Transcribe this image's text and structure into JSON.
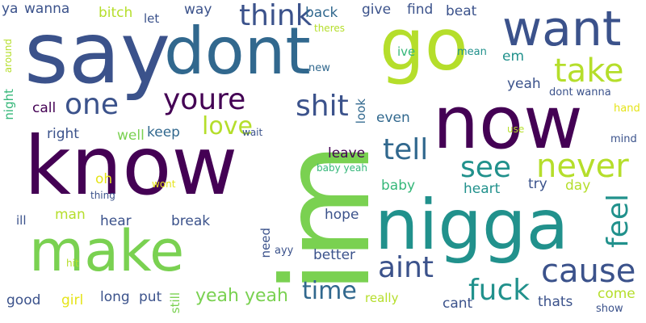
{
  "palette": {
    "background": "#ffffff",
    "indigo": "#440154",
    "deep-blue": "#3b528b",
    "steel-blue": "#31688e",
    "teal": "#21918c",
    "green": "#35b779",
    "lime": "#7ad151",
    "yellow-green": "#b5de2b",
    "yellow": "#e5e419"
  },
  "words": [
    {
      "text": "ya",
      "size": 17,
      "color": "#3b528b"
    },
    {
      "text": "wanna",
      "size": 17,
      "color": "#3b528b"
    },
    {
      "text": "bitch",
      "size": 17,
      "color": "#b5de2b"
    },
    {
      "text": "let",
      "size": 15,
      "color": "#3b528b"
    },
    {
      "text": "way",
      "size": 17,
      "color": "#3b528b"
    },
    {
      "text": "think",
      "size": 36,
      "color": "#3b528b"
    },
    {
      "text": "back",
      "size": 17,
      "color": "#31688e"
    },
    {
      "text": "theres",
      "size": 12,
      "color": "#b5de2b"
    },
    {
      "text": "give",
      "size": 17,
      "color": "#3b528b"
    },
    {
      "text": "find",
      "size": 17,
      "color": "#3b528b"
    },
    {
      "text": "beat",
      "size": 17,
      "color": "#3b528b"
    },
    {
      "text": "say",
      "size": 105,
      "color": "#3b528b"
    },
    {
      "text": "dont",
      "size": 80,
      "color": "#31688e"
    },
    {
      "text": "go",
      "size": 88,
      "color": "#b5de2b"
    },
    {
      "text": "want",
      "size": 60,
      "color": "#3b528b"
    },
    {
      "text": "around",
      "size": 12,
      "color": "#b5de2b"
    },
    {
      "text": "ive",
      "size": 15,
      "color": "#35b779"
    },
    {
      "text": "mean",
      "size": 13,
      "color": "#21918c"
    },
    {
      "text": "em",
      "size": 17,
      "color": "#21918c"
    },
    {
      "text": "new",
      "size": 13,
      "color": "#31688e"
    },
    {
      "text": "take",
      "size": 40,
      "color": "#b5de2b"
    },
    {
      "text": "one",
      "size": 36,
      "color": "#3b528b"
    },
    {
      "text": "youre",
      "size": 36,
      "color": "#440154"
    },
    {
      "text": "yeah",
      "size": 17,
      "color": "#3b528b"
    },
    {
      "text": "dont wanna",
      "size": 13,
      "color": "#3b528b"
    },
    {
      "text": "night",
      "size": 15,
      "color": "#35b779"
    },
    {
      "text": "call",
      "size": 17,
      "color": "#440154"
    },
    {
      "text": "shit",
      "size": 36,
      "color": "#3b528b"
    },
    {
      "text": "look",
      "size": 15,
      "color": "#31688e"
    },
    {
      "text": "now",
      "size": 90,
      "color": "#440154"
    },
    {
      "text": "hand",
      "size": 13,
      "color": "#e5e419"
    },
    {
      "text": "even",
      "size": 17,
      "color": "#31688e"
    },
    {
      "text": "love",
      "size": 30,
      "color": "#b5de2b"
    },
    {
      "text": "right",
      "size": 17,
      "color": "#3b528b"
    },
    {
      "text": "well",
      "size": 17,
      "color": "#7ad151"
    },
    {
      "text": "keep",
      "size": 17,
      "color": "#31688e"
    },
    {
      "text": "wait",
      "size": 12,
      "color": "#3b528b"
    },
    {
      "text": "use",
      "size": 12,
      "color": "#b5de2b"
    },
    {
      "text": "mind",
      "size": 13,
      "color": "#3b528b"
    },
    {
      "text": "tell",
      "size": 36,
      "color": "#31688e"
    },
    {
      "text": "know",
      "size": 100,
      "color": "#440154"
    },
    {
      "text": "im",
      "size": 150,
      "color": "#7ad151"
    },
    {
      "text": "see",
      "size": 36,
      "color": "#21918c"
    },
    {
      "text": "never",
      "size": 40,
      "color": "#b5de2b"
    },
    {
      "text": "leave",
      "size": 17,
      "color": "#440154"
    },
    {
      "text": "baby yeah",
      "size": 12,
      "color": "#35b779"
    },
    {
      "text": "oh",
      "size": 17,
      "color": "#e5e419"
    },
    {
      "text": "wont",
      "size": 12,
      "color": "#e5e419"
    },
    {
      "text": "baby",
      "size": 17,
      "color": "#35b779"
    },
    {
      "text": "heart",
      "size": 17,
      "color": "#21918c"
    },
    {
      "text": "try",
      "size": 17,
      "color": "#3b528b"
    },
    {
      "text": "day",
      "size": 17,
      "color": "#b5de2b"
    },
    {
      "text": "thing",
      "size": 12,
      "color": "#3b528b"
    },
    {
      "text": "feel",
      "size": 36,
      "color": "#21918c"
    },
    {
      "text": "ill",
      "size": 15,
      "color": "#3b528b"
    },
    {
      "text": "man",
      "size": 17,
      "color": "#b5de2b"
    },
    {
      "text": "hear",
      "size": 17,
      "color": "#3b528b"
    },
    {
      "text": "break",
      "size": 17,
      "color": "#3b528b"
    },
    {
      "text": "hope",
      "size": 17,
      "color": "#3b528b"
    },
    {
      "text": "nigga",
      "size": 86,
      "color": "#21918c"
    },
    {
      "text": "make",
      "size": 70,
      "color": "#7ad151"
    },
    {
      "text": "need",
      "size": 15,
      "color": "#3b528b"
    },
    {
      "text": "ayy",
      "size": 13,
      "color": "#3b528b"
    },
    {
      "text": "hit",
      "size": 12,
      "color": "#b5de2b"
    },
    {
      "text": "better",
      "size": 17,
      "color": "#3b528b"
    },
    {
      "text": "aint",
      "size": 36,
      "color": "#3b528b"
    },
    {
      "text": "cause",
      "size": 40,
      "color": "#3b528b"
    },
    {
      "text": "time",
      "size": 30,
      "color": "#31688e"
    },
    {
      "text": "fuck",
      "size": 36,
      "color": "#21918c"
    },
    {
      "text": "good",
      "size": 17,
      "color": "#3b528b"
    },
    {
      "text": "girl",
      "size": 17,
      "color": "#e5e419"
    },
    {
      "text": "long",
      "size": 17,
      "color": "#3b528b"
    },
    {
      "text": "put",
      "size": 17,
      "color": "#3b528b"
    },
    {
      "text": "still",
      "size": 15,
      "color": "#7ad151"
    },
    {
      "text": "yeah yeah",
      "size": 22,
      "color": "#7ad151"
    },
    {
      "text": "really",
      "size": 15,
      "color": "#b5de2b"
    },
    {
      "text": "cant",
      "size": 17,
      "color": "#3b528b"
    },
    {
      "text": "thats",
      "size": 17,
      "color": "#3b528b"
    },
    {
      "text": "come",
      "size": 17,
      "color": "#b5de2b"
    },
    {
      "text": "show",
      "size": 13,
      "color": "#3b528b"
    }
  ]
}
